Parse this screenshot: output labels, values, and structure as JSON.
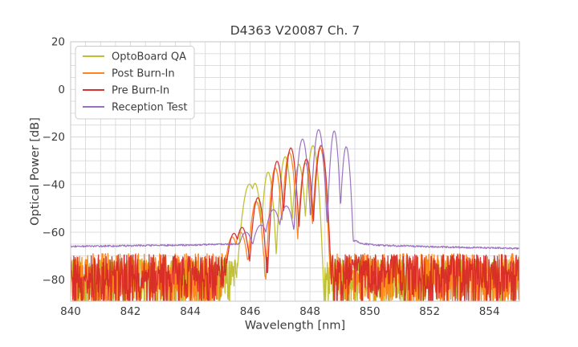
{
  "chart_data": {
    "type": "line",
    "title": "D4363 V20087 Ch. 7",
    "xlabel": "Wavelength [nm]",
    "ylabel": "Optical Power [dB]",
    "xlim": [
      840,
      855
    ],
    "ylim": [
      -89,
      20
    ],
    "xticks": [
      840,
      842,
      844,
      846,
      848,
      850,
      852,
      854
    ],
    "yticks": [
      20,
      0,
      -20,
      -40,
      -60,
      -80
    ],
    "ytick_labels": [
      "20",
      "0",
      "−20",
      "−40",
      "−60",
      "−80"
    ],
    "grid": {
      "on": true,
      "x_step": 0.5,
      "y_step": 5
    },
    "legend": {
      "position": "upper left"
    },
    "mode_halfwidth": 0.235,
    "sample_step": 0.015,
    "series": [
      {
        "name": "OptoBoard QA",
        "color": "#bcbd22",
        "modes": [
          [
            845.98,
            -39.8,
            12
          ],
          [
            846.16,
            -39.5,
            20
          ],
          [
            846.6,
            -34.8,
            26
          ],
          [
            847.17,
            -28.3,
            26
          ],
          [
            847.63,
            -31.5,
            26
          ],
          [
            848.1,
            -23.6,
            26
          ]
        ],
        "noise": {
          "top": -71.5,
          "span": 19,
          "pow": 1.6,
          "seed": 101,
          "deep_prob": 0.15,
          "deep_extra": 8
        }
      },
      {
        "name": "Post Burn-In",
        "color": "#ff7f0e",
        "modes": [
          [
            845.4,
            -62.0,
            12
          ],
          [
            845.68,
            -60.0,
            12
          ],
          [
            846.2,
            -47.0,
            20
          ],
          [
            846.84,
            -33.0,
            26
          ],
          [
            847.31,
            -26.6,
            26
          ],
          [
            847.85,
            -31.0,
            26
          ],
          [
            848.34,
            -24.6,
            27
          ]
        ],
        "noise": {
          "top": -69.0,
          "span": 20,
          "pow": 1.5,
          "seed": 303,
          "deep_prob": 0.2,
          "deep_extra": 8
        }
      },
      {
        "name": "Pre Burn-In",
        "color": "#d62728",
        "modes": [
          [
            845.46,
            -60.5,
            12
          ],
          [
            845.73,
            -58.0,
            12
          ],
          [
            846.26,
            -45.5,
            20
          ],
          [
            846.9,
            -30.2,
            26
          ],
          [
            847.36,
            -24.6,
            26
          ],
          [
            847.88,
            -29.3,
            26
          ],
          [
            848.37,
            -23.6,
            27
          ]
        ],
        "noise": {
          "top": -69.4,
          "span": 20,
          "pow": 1.5,
          "seed": 202,
          "deep_prob": 0.22,
          "deep_extra": 8
        }
      },
      {
        "name": "Reception Test",
        "color": "#9467bd",
        "modes": [
          [
            845.86,
            -60.0,
            6
          ],
          [
            846.36,
            -57.0,
            6
          ],
          [
            846.78,
            -50.5,
            8
          ],
          [
            847.21,
            -49.0,
            9
          ],
          [
            847.75,
            -20.9,
            26
          ],
          [
            848.29,
            -16.9,
            28
          ],
          [
            848.81,
            -17.5,
            40
          ],
          [
            849.21,
            -24.1,
            40
          ]
        ],
        "base": [
          [
            840,
            -66.0
          ],
          [
            842,
            -65.7
          ],
          [
            844,
            -65.4
          ],
          [
            845.3,
            -65.0
          ],
          [
            846.5,
            -64.7
          ],
          [
            848.0,
            -64.6
          ],
          [
            849.5,
            -63.6
          ],
          [
            849.8,
            -64.9
          ],
          [
            850.3,
            -65.5
          ],
          [
            852,
            -66.1
          ],
          [
            854,
            -66.6
          ],
          [
            855,
            -66.9
          ]
        ],
        "jitter": 0.35,
        "seed": 404
      }
    ]
  }
}
